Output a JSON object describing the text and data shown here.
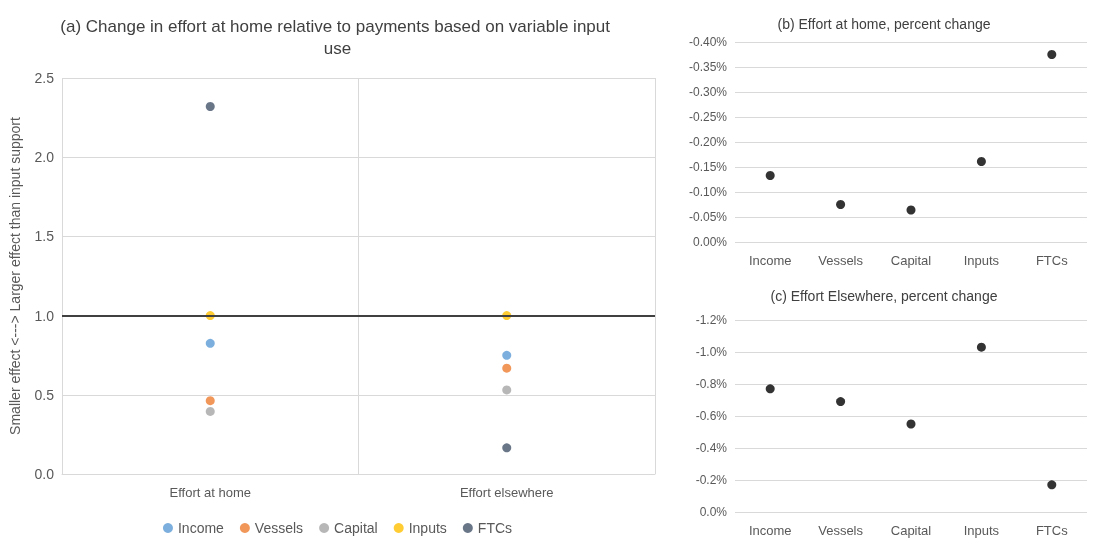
{
  "chart_data": [
    {
      "type": "scatter",
      "title": "(a) Change in effort at home relative to payments based on variable input use",
      "ylabel": "Smaller effect <---> Larger effect than input support",
      "categories": [
        "Effort at home",
        "Effort elsewhere"
      ],
      "series": [
        {
          "name": "Income",
          "color": "#5b9bd5",
          "values": [
            0.825,
            0.749
          ]
        },
        {
          "name": "Vessels",
          "color": "#ed7d31",
          "values": [
            0.463,
            0.668
          ]
        },
        {
          "name": "Capital",
          "color": "#a5a5a5",
          "values": [
            0.395,
            0.531
          ]
        },
        {
          "name": "Inputs",
          "color": "#ffc000",
          "values": [
            1.0,
            1.0
          ]
        },
        {
          "name": "FTCs",
          "color": "#44546a",
          "values": [
            2.32,
            0.165
          ]
        }
      ],
      "ylim": [
        0,
        2.5
      ],
      "yticks": [
        {
          "value": 0,
          "label": "0.0"
        },
        {
          "value": 0.5,
          "label": "0.5"
        },
        {
          "value": 1,
          "label": "1.0"
        },
        {
          "value": 1.5,
          "label": "1.5"
        },
        {
          "value": 2,
          "label": "2.0"
        },
        {
          "value": 2.5,
          "label": "2.5"
        }
      ],
      "ref_lines": [
        {
          "axis": "y",
          "value": 1,
          "color": "#404040"
        }
      ],
      "grid": true,
      "legend": "bottom",
      "marker": "circle"
    },
    {
      "type": "scatter",
      "title": "(b) Effort at home, percent change",
      "categories": [
        "Income",
        "Vessels",
        "Capital",
        "Inputs",
        "FTCs"
      ],
      "series": [
        {
          "color": "#000000",
          "values": [
            -0.133,
            -0.075,
            -0.064,
            -0.161,
            -0.375
          ]
        }
      ],
      "ylim": [
        0,
        -0.4
      ],
      "yticks": [
        {
          "value": 0,
          "label": "0.00%"
        },
        {
          "value": -0.05,
          "label": "-0.05%"
        },
        {
          "value": -0.1,
          "label": "-0.10%"
        },
        {
          "value": -0.15,
          "label": "-0.15%"
        },
        {
          "value": -0.2,
          "label": "-0.20%"
        },
        {
          "value": -0.25,
          "label": "-0.25%"
        },
        {
          "value": -0.3,
          "label": "-0.30%"
        },
        {
          "value": -0.35,
          "label": "-0.35%"
        },
        {
          "value": -0.4,
          "label": "-0.40%"
        }
      ],
      "grid": "y",
      "marker": "circle"
    },
    {
      "type": "scatter",
      "title": "(c) Effort Elsewhere, percent change",
      "categories": [
        "Income",
        "Vessels",
        "Capital",
        "Inputs",
        "FTCs"
      ],
      "series": [
        {
          "color": "#000000",
          "values": [
            -0.77,
            -0.69,
            -0.55,
            -1.03,
            -0.17
          ]
        }
      ],
      "ylim": [
        0,
        -1.2
      ],
      "yticks": [
        {
          "value": 0,
          "label": "0.0%"
        },
        {
          "value": -0.2,
          "label": "-0.2%"
        },
        {
          "value": -0.4,
          "label": "-0.4%"
        },
        {
          "value": -0.6,
          "label": "-0.6%"
        },
        {
          "value": -0.8,
          "label": "-0.8%"
        },
        {
          "value": -1,
          "label": "-1.0%"
        },
        {
          "value": -1.2,
          "label": "-1.2%"
        }
      ],
      "grid": "y",
      "marker": "circle"
    }
  ]
}
